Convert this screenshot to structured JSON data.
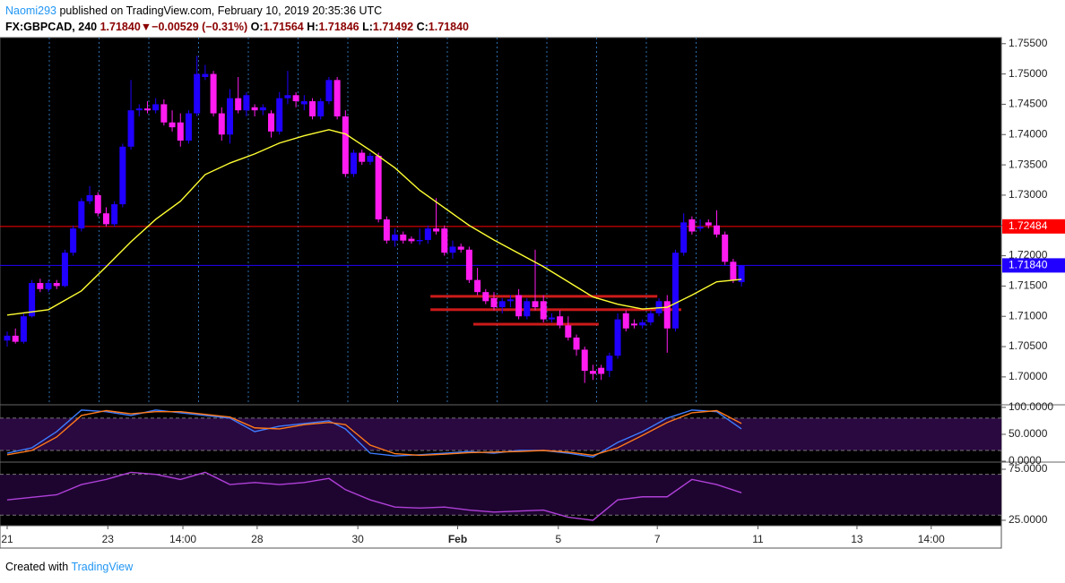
{
  "header": {
    "author": "Naomi293",
    "published": "published on TradingView.com, February 10, 2019 20:35:36 UTC",
    "symbol": "FX:GBPCAD, 240",
    "last": "1.71840",
    "change": "−0.00529 (−0.31%)",
    "o_label": "O:",
    "open": "1.71564",
    "h_label": "H:",
    "high": "1.71846",
    "l_label": "L:",
    "low": "1.71492",
    "c_label": "C:",
    "close": "1.71840"
  },
  "footer": {
    "created": "Created with",
    "brand": "TradingView"
  },
  "chart_data": [
    {
      "type": "candlestick",
      "up_color": "#2000ff",
      "down_color": "#ff1cf0",
      "xlim": [
        -0.87,
        120.5
      ],
      "xticks": [
        {
          "value": 0,
          "label": "21"
        },
        {
          "value": 12.2,
          "label": "23"
        },
        {
          "value": 21.3,
          "label": "14:00"
        },
        {
          "value": 30.3,
          "label": "28"
        },
        {
          "value": 42.5,
          "label": "30"
        },
        {
          "value": 54.6,
          "label": "Feb",
          "bold": true
        },
        {
          "value": 66.8,
          "label": "5"
        },
        {
          "value": 78.8,
          "label": "7"
        },
        {
          "value": 91,
          "label": "11"
        },
        {
          "value": 103,
          "label": "13"
        },
        {
          "value": 112,
          "label": "14:00"
        }
      ],
      "ylim": [
        1.6954,
        1.756
      ],
      "yticks": [
        {
          "value": 1.755,
          "label": "1.75500"
        },
        {
          "value": 1.75,
          "label": "1.75000"
        },
        {
          "value": 1.745,
          "label": "1.74500"
        },
        {
          "value": 1.74,
          "label": "1.74000"
        },
        {
          "value": 1.735,
          "label": "1.73500"
        },
        {
          "value": 1.73,
          "label": "1.73000"
        },
        {
          "value": 1.725,
          "label": "1.72500"
        },
        {
          "value": 1.72,
          "label": "1.72000"
        },
        {
          "value": 1.715,
          "label": "1.71500"
        },
        {
          "value": 1.71,
          "label": "1.71000"
        },
        {
          "value": 1.705,
          "label": "1.70500"
        },
        {
          "value": 1.7,
          "label": "1.70000"
        }
      ],
      "ohlc": [
        [
          1.706,
          1.7075,
          1.705,
          1.7068
        ],
        [
          1.7068,
          1.708,
          1.7055,
          1.7058
        ],
        [
          1.7058,
          1.7105,
          1.7055,
          1.71
        ],
        [
          1.71,
          1.716,
          1.7098,
          1.7155
        ],
        [
          1.7155,
          1.7162,
          1.714,
          1.7145
        ],
        [
          1.7145,
          1.716,
          1.714,
          1.7155
        ],
        [
          1.7155,
          1.716,
          1.7145,
          1.715
        ],
        [
          1.715,
          1.721,
          1.7148,
          1.7205
        ],
        [
          1.7205,
          1.725,
          1.72,
          1.7245
        ],
        [
          1.7245,
          1.7295,
          1.724,
          1.729
        ],
        [
          1.729,
          1.7315,
          1.7285,
          1.73
        ],
        [
          1.73,
          1.7305,
          1.7265,
          1.727
        ],
        [
          1.727,
          1.728,
          1.7248,
          1.7252
        ],
        [
          1.7252,
          1.729,
          1.7248,
          1.7285
        ],
        [
          1.7285,
          1.7385,
          1.728,
          1.738
        ],
        [
          1.738,
          1.749,
          1.7375,
          1.744
        ],
        [
          1.744,
          1.745,
          1.743,
          1.7443
        ],
        [
          1.7443,
          1.7455,
          1.7435,
          1.744
        ],
        [
          1.744,
          1.746,
          1.7435,
          1.745
        ],
        [
          1.745,
          1.7458,
          1.7415,
          1.742
        ],
        [
          1.742,
          1.744,
          1.7405,
          1.7412
        ],
        [
          1.742,
          1.7435,
          1.738,
          1.739
        ],
        [
          1.739,
          1.744,
          1.7385,
          1.7435
        ],
        [
          1.7435,
          1.753,
          1.743,
          1.75
        ],
        [
          1.7495,
          1.7515,
          1.749,
          1.75
        ],
        [
          1.75,
          1.7505,
          1.743,
          1.7435
        ],
        [
          1.7435,
          1.7445,
          1.739,
          1.74
        ],
        [
          1.74,
          1.7475,
          1.7385,
          1.746
        ],
        [
          1.746,
          1.7495,
          1.7435,
          1.744
        ],
        [
          1.744,
          1.747,
          1.743,
          1.7465
        ],
        [
          1.7445,
          1.745,
          1.743,
          1.744
        ],
        [
          1.744,
          1.745,
          1.7432,
          1.7445
        ],
        [
          1.7435,
          1.744,
          1.7395,
          1.7405
        ],
        [
          1.7405,
          1.747,
          1.74,
          1.746
        ],
        [
          1.746,
          1.7505,
          1.745,
          1.7465
        ],
        [
          1.7465,
          1.747,
          1.7445,
          1.7455
        ],
        [
          1.745,
          1.7465,
          1.744,
          1.7455
        ],
        [
          1.7455,
          1.746,
          1.7425,
          1.743
        ],
        [
          1.743,
          1.746,
          1.7425,
          1.7455
        ],
        [
          1.7455,
          1.7495,
          1.745,
          1.749
        ],
        [
          1.749,
          1.7495,
          1.7425,
          1.743
        ],
        [
          1.743,
          1.744,
          1.733,
          1.7335
        ],
        [
          1.7335,
          1.7375,
          1.733,
          1.737
        ],
        [
          1.737,
          1.7375,
          1.735,
          1.7355
        ],
        [
          1.7355,
          1.737,
          1.735,
          1.7365
        ],
        [
          1.7365,
          1.737,
          1.7255,
          1.726
        ],
        [
          1.726,
          1.7265,
          1.722,
          1.7225
        ],
        [
          1.7225,
          1.7245,
          1.7215,
          1.7235
        ],
        [
          1.7235,
          1.724,
          1.722,
          1.7225
        ],
        [
          1.7228,
          1.7232,
          1.722,
          1.7224
        ],
        [
          1.7224,
          1.7245,
          1.7218,
          1.7226
        ],
        [
          1.7226,
          1.725,
          1.722,
          1.7245
        ],
        [
          1.7245,
          1.7295,
          1.7235,
          1.724
        ],
        [
          1.7245,
          1.725,
          1.72,
          1.7205
        ],
        [
          1.7205,
          1.7225,
          1.7195,
          1.7215
        ],
        [
          1.7215,
          1.722,
          1.7205,
          1.721
        ],
        [
          1.721,
          1.7215,
          1.7155,
          1.716
        ],
        [
          1.716,
          1.718,
          1.7135,
          1.714
        ],
        [
          1.714,
          1.7145,
          1.712,
          1.7125
        ],
        [
          1.713,
          1.714,
          1.711,
          1.7115
        ],
        [
          1.7115,
          1.713,
          1.7105,
          1.7125
        ],
        [
          1.7125,
          1.7135,
          1.7115,
          1.7128
        ],
        [
          1.7135,
          1.7145,
          1.7095,
          1.71
        ],
        [
          1.71,
          1.713,
          1.7095,
          1.7125
        ],
        [
          1.7125,
          1.721,
          1.711,
          1.7115
        ],
        [
          1.7125,
          1.7135,
          1.709,
          1.7095
        ],
        [
          1.7095,
          1.7105,
          1.709,
          1.7098
        ],
        [
          1.71,
          1.711,
          1.708,
          1.7085
        ],
        [
          1.7085,
          1.71,
          1.706,
          1.7065
        ],
        [
          1.7065,
          1.707,
          1.7035,
          1.7045
        ],
        [
          1.7045,
          1.705,
          1.699,
          1.701
        ],
        [
          1.701,
          1.702,
          1.6995,
          1.7005
        ],
        [
          1.7015,
          1.702,
          1.6995,
          1.7005
        ],
        [
          1.701,
          1.704,
          1.7,
          1.7035
        ],
        [
          1.7035,
          1.7105,
          1.703,
          1.7095
        ],
        [
          1.7105,
          1.711,
          1.7075,
          1.708
        ],
        [
          1.7088,
          1.7095,
          1.708,
          1.7085
        ],
        [
          1.7085,
          1.7095,
          1.708,
          1.709
        ],
        [
          1.709,
          1.711,
          1.7085,
          1.7105
        ],
        [
          1.7105,
          1.713,
          1.71,
          1.7125
        ],
        [
          1.7125,
          1.7135,
          1.704,
          1.708
        ],
        [
          1.708,
          1.721,
          1.7075,
          1.7205
        ],
        [
          1.7205,
          1.727,
          1.72,
          1.7255
        ],
        [
          1.726,
          1.7265,
          1.7235,
          1.724
        ],
        [
          1.7245,
          1.726,
          1.724,
          1.7248
        ],
        [
          1.7255,
          1.726,
          1.7245,
          1.725
        ],
        [
          1.725,
          1.7275,
          1.723,
          1.7235
        ],
        [
          1.7235,
          1.724,
          1.7185,
          1.719
        ],
        [
          1.719,
          1.7195,
          1.7155,
          1.716
        ],
        [
          1.71564,
          1.71846,
          1.71492,
          1.7184
        ]
      ],
      "overlays": [
        {
          "color": "#ffff33",
          "x": [
            0,
            5,
            9,
            12,
            15,
            18,
            21,
            24,
            27,
            30,
            33,
            36,
            39,
            41,
            44,
            47,
            50,
            53,
            56,
            59,
            62,
            65,
            68,
            71,
            74,
            77,
            80,
            83,
            86,
            89
          ],
          "values": [
            1.7102,
            1.7111,
            1.7142,
            1.7182,
            1.7223,
            1.726,
            1.729,
            1.7334,
            1.7353,
            1.7368,
            1.7386,
            1.7398,
            1.7408,
            1.7401,
            1.7374,
            1.7345,
            1.7308,
            1.7279,
            1.725,
            1.7226,
            1.7204,
            1.7182,
            1.7157,
            1.7132,
            1.712,
            1.7112,
            1.7115,
            1.7135,
            1.7157,
            1.7161
          ]
        }
      ],
      "hlines": [
        {
          "value": 1.72484,
          "label": "1.72484",
          "color": "#ff0000"
        },
        {
          "value": 1.7184,
          "label": "1.71840",
          "color": "#2200ff"
        }
      ],
      "levels": [
        {
          "value": 1.7133,
          "x": [
            51.3,
            78.8
          ],
          "color": "#ff2020"
        },
        {
          "value": 1.7111,
          "x": [
            51.3,
            81.7
          ],
          "color": "#ff2020"
        },
        {
          "value": 1.7087,
          "x": [
            56.5,
            71.7
          ],
          "color": "#ff2020"
        }
      ]
    },
    {
      "type": "line",
      "ylim": [
        -1.6,
        104.8
      ],
      "yticks": [
        {
          "value": 100,
          "label": "100.0000"
        },
        {
          "value": 50,
          "label": "50.0000"
        },
        {
          "value": 0,
          "label": "0.0000"
        }
      ],
      "band": [
        20,
        80
      ],
      "band_color": "#2a0840",
      "series": [
        {
          "color": "#3d7cff",
          "x": [
            0,
            3,
            6,
            9,
            12,
            15,
            18,
            21,
            24,
            27,
            30,
            33,
            36,
            39,
            41,
            44,
            47,
            50,
            53,
            56,
            59,
            62,
            65,
            68,
            71,
            74,
            77,
            80,
            83,
            86,
            89
          ],
          "values": [
            15,
            25,
            55,
            95,
            92,
            85,
            95,
            90,
            85,
            80,
            55,
            65,
            70,
            75,
            60,
            15,
            10,
            12,
            15,
            18,
            15,
            20,
            20,
            15,
            8,
            35,
            55,
            80,
            95,
            92,
            60
          ]
        },
        {
          "color": "#ff7a1a",
          "x": [
            0,
            3,
            6,
            9,
            12,
            15,
            18,
            21,
            24,
            27,
            30,
            33,
            36,
            39,
            41,
            44,
            47,
            50,
            53,
            56,
            59,
            62,
            65,
            68,
            71,
            74,
            77,
            80,
            83,
            86,
            89
          ],
          "values": [
            12,
            20,
            45,
            85,
            94,
            88,
            92,
            92,
            87,
            82,
            62,
            60,
            68,
            72,
            68,
            30,
            14,
            11,
            13,
            16,
            17,
            18,
            20,
            17,
            11,
            25,
            48,
            72,
            90,
            94,
            70
          ]
        }
      ]
    },
    {
      "type": "line",
      "ylim": [
        19.7,
        82
      ],
      "yticks": [
        {
          "value": 75,
          "label": "75.0000"
        },
        {
          "value": 25,
          "label": "25.0000"
        }
      ],
      "band": [
        30,
        70
      ],
      "band_color": "#1e0530",
      "series": [
        {
          "color": "#b040d8",
          "x": [
            0,
            6,
            9,
            12,
            15,
            18,
            21,
            24,
            27,
            30,
            33,
            36,
            39,
            41,
            44,
            47,
            50,
            53,
            56,
            59,
            62,
            65,
            68,
            71,
            74,
            77,
            80,
            83,
            86,
            89
          ],
          "values": [
            45,
            50,
            60,
            65,
            72,
            70,
            65,
            72,
            60,
            62,
            60,
            62,
            66,
            55,
            45,
            38,
            37,
            38,
            35,
            33,
            34,
            35,
            28,
            25,
            45,
            48,
            48,
            65,
            60,
            52
          ]
        }
      ]
    }
  ]
}
